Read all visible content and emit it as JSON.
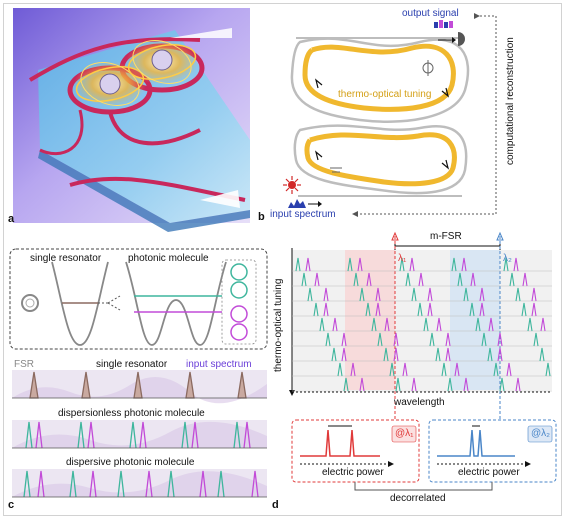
{
  "panel_a": {
    "letter": "a"
  },
  "panel_b": {
    "letter": "b",
    "output_signal": "output signal",
    "tuning": "thermo-optical tuning",
    "input_spectrum": "input spectrum",
    "reconstruction": "computational reconstruction",
    "colors": {
      "waveguide": "#f0b82e",
      "output": "#2a3fae",
      "input": "#d22828",
      "gray": "#bdbdbd"
    }
  },
  "panel_c": {
    "letter": "c",
    "single_resonator_top": "single resonator",
    "photonic_molecule": "photonic molecule",
    "fsr": "FSR",
    "single_resonator_row": "single resonator",
    "input_spectrum": "input spectrum",
    "dispersionless": "dispersionless photonic molecule",
    "dispersive": "dispersive photonic molecule",
    "colors": {
      "teal": "#3fb69d",
      "magenta": "#c24bd8",
      "brown": "#8b6a60",
      "purple": "#6b3fd8"
    }
  },
  "panel_d": {
    "letter": "d",
    "mfsr": "m-FSR",
    "lambda1": "λ₁",
    "lambda2": "λ₂",
    "ylabel": "thermo-optical tuning",
    "xlabel": "wavelength",
    "inset1_tag": "@λ₁",
    "inset2_tag": "@λ₂",
    "electric_power_1": "electric power",
    "electric_power_2": "electric power",
    "decorrelated": "decorrelated",
    "colors": {
      "red": "#e03a3a",
      "blue": "#4a86c8",
      "teal": "#3fb69d",
      "magenta": "#c24bd8"
    }
  }
}
